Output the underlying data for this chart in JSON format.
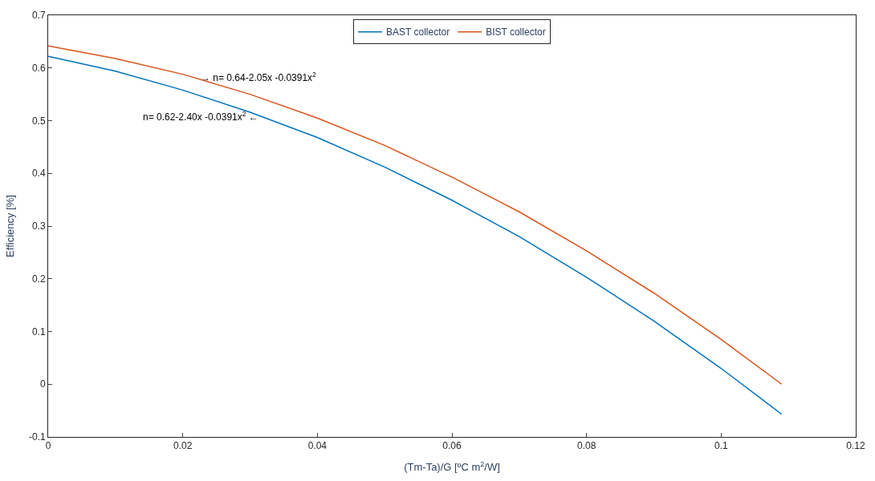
{
  "chart_data": {
    "type": "line",
    "xlabel": "(Tm-Ta)/G [ºC m$^{2}$/W]",
    "ylabel": "Efficiency [%]",
    "x": [
      0,
      0.01,
      0.02,
      0.03,
      0.04,
      0.05,
      0.06,
      0.07,
      0.08,
      0.09,
      0.1,
      0.109
    ],
    "series": [
      {
        "name": "BAST collector",
        "color": "#0072bd",
        "values": [
          0.622,
          0.594,
          0.558,
          0.516,
          0.468,
          0.412,
          0.349,
          0.28,
          0.203,
          0.12,
          0.03,
          -0.057
        ]
      },
      {
        "name": "BIST collector",
        "color": "#d95319",
        "values": [
          0.642,
          0.618,
          0.588,
          0.55,
          0.505,
          0.453,
          0.393,
          0.327,
          0.253,
          0.173,
          0.085,
          0.0
        ]
      }
    ],
    "xlim": [
      0,
      0.12
    ],
    "xticks": [
      0,
      0.02,
      0.04,
      0.06,
      0.08,
      0.1,
      0.12
    ],
    "ylim": [
      -0.1,
      0.7
    ],
    "yticks": [
      -0.1,
      0,
      0.1,
      0.2,
      0.3,
      0.4,
      0.5,
      0.6,
      0.7
    ],
    "annotations": [
      {
        "text": "→ n= 0.64-2.05x -0.0391x$^{2}$",
        "x": 0.022,
        "y": 0.58
      },
      {
        "text": "n= 0.62-2.40x -0.0391x$^{2}$ ←",
        "x": 0.032,
        "y": 0.506
      }
    ],
    "legend": "top",
    "marker": "none",
    "line_style": "solid"
  }
}
